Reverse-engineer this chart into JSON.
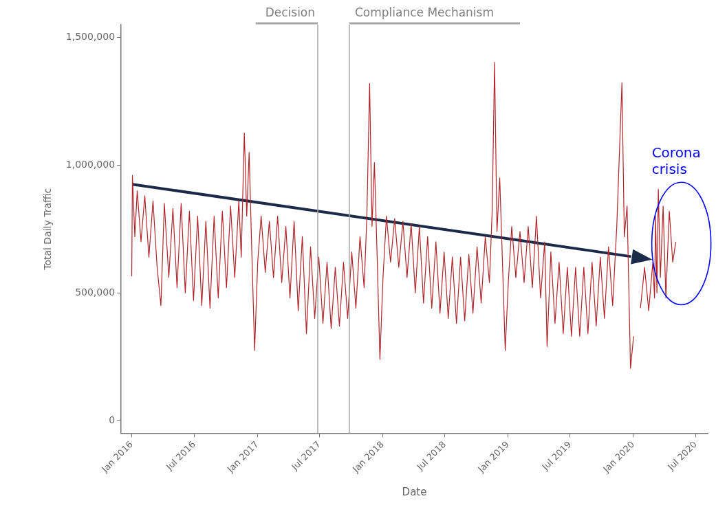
{
  "chart_data": {
    "type": "line",
    "xlabel": "Date",
    "ylabel": "Total Daily Traffic",
    "xlim": [
      "2015-12-01",
      "2020-08-05"
    ],
    "xticks": [
      {
        "value": "2016-01-01",
        "label": "Jan 2016"
      },
      {
        "value": "2016-07-01",
        "label": "Jul 2016"
      },
      {
        "value": "2017-01-01",
        "label": "Jan 2017"
      },
      {
        "value": "2017-07-01",
        "label": "Jul 2017"
      },
      {
        "value": "2018-01-01",
        "label": "Jan 2018"
      },
      {
        "value": "2018-07-01",
        "label": "Jul 2018"
      },
      {
        "value": "2019-01-01",
        "label": "Jan 2019"
      },
      {
        "value": "2019-07-01",
        "label": "Jul 2019"
      },
      {
        "value": "2020-01-01",
        "label": "Jan 2020"
      },
      {
        "value": "2020-07-01",
        "label": "Jul 2020"
      }
    ],
    "ylim": [
      -50000,
      1550000
    ],
    "yticks": [
      0,
      {
        "value": 500000,
        "label": "500,000"
      },
      {
        "value": 1000000,
        "label": "1,000,000"
      },
      {
        "value": 1500000,
        "label": "1,500,000"
      }
    ],
    "grid": false,
    "legend": false,
    "marker": "none",
    "line_style": "solid",
    "series": [
      {
        "color": "#b0252a",
        "x": [
          "2016-01-01",
          "2016-01-03",
          "2016-01-10",
          "2016-01-17",
          "2016-01-28",
          "2016-02-08",
          "2016-02-20",
          "2016-03-03",
          "2016-03-15",
          "2016-03-26",
          "2016-04-05",
          "2016-04-18",
          "2016-04-30",
          "2016-05-12",
          "2016-05-24",
          "2016-06-05",
          "2016-06-17",
          "2016-06-29",
          "2016-07-11",
          "2016-07-23",
          "2016-08-04",
          "2016-08-16",
          "2016-08-28",
          "2016-09-09",
          "2016-09-21",
          "2016-10-03",
          "2016-10-15",
          "2016-10-27",
          "2016-11-08",
          "2016-11-15",
          "2016-11-24",
          "2016-12-01",
          "2016-12-08",
          "2016-12-15",
          "2016-12-24",
          "2017-01-02",
          "2017-01-12",
          "2017-01-24",
          "2017-02-05",
          "2017-02-17",
          "2017-03-01",
          "2017-03-13",
          "2017-03-25",
          "2017-04-06",
          "2017-04-18",
          "2017-04-30",
          "2017-05-12",
          "2017-05-24",
          "2017-06-05",
          "2017-06-17",
          "2017-06-29",
          "2017-07-11",
          "2017-07-23",
          "2017-08-04",
          "2017-08-16",
          "2017-08-28",
          "2017-09-09",
          "2017-09-21",
          "2017-10-03",
          "2017-10-15",
          "2017-10-27",
          "2017-11-08",
          "2017-11-16",
          "2017-11-24",
          "2017-12-01",
          "2017-12-08",
          "2017-12-16",
          "2017-12-24",
          "2018-01-02",
          "2018-01-12",
          "2018-01-24",
          "2018-02-05",
          "2018-02-17",
          "2018-03-01",
          "2018-03-13",
          "2018-03-25",
          "2018-04-06",
          "2018-04-18",
          "2018-04-30",
          "2018-05-12",
          "2018-05-24",
          "2018-06-05",
          "2018-06-17",
          "2018-06-29",
          "2018-07-11",
          "2018-07-23",
          "2018-08-04",
          "2018-08-16",
          "2018-08-28",
          "2018-09-09",
          "2018-09-21",
          "2018-10-03",
          "2018-10-15",
          "2018-10-27",
          "2018-11-08",
          "2018-11-16",
          "2018-11-23",
          "2018-11-30",
          "2018-12-08",
          "2018-12-16",
          "2018-12-24",
          "2019-01-02",
          "2019-01-12",
          "2019-01-24",
          "2019-02-05",
          "2019-02-17",
          "2019-03-01",
          "2019-03-13",
          "2019-03-25",
          "2019-04-06",
          "2019-04-18",
          "2019-04-25",
          "2019-05-06",
          "2019-05-18",
          "2019-05-30",
          "2019-06-11",
          "2019-06-23",
          "2019-07-05",
          "2019-07-17",
          "2019-07-29",
          "2019-08-10",
          "2019-08-22",
          "2019-09-03",
          "2019-09-15",
          "2019-09-27",
          "2019-10-09",
          "2019-10-21",
          "2019-11-02",
          "2019-11-14",
          "2019-11-29",
          "2019-12-06",
          "2019-12-14",
          "2019-12-24",
          "2020-01-02",
          "2020-01-10",
          "2020-01-22",
          "2020-02-03",
          "2020-02-15",
          "2020-02-27",
          "2020-03-03",
          "2020-03-06",
          "2020-03-10",
          "2020-03-14",
          "2020-03-20",
          "2020-03-28",
          "2020-04-05",
          "2020-04-15",
          "2020-04-25",
          "2020-05-04"
        ],
        "values": [
          565000,
          960000,
          720000,
          900000,
          700000,
          880000,
          640000,
          860000,
          600000,
          450000,
          850000,
          560000,
          830000,
          520000,
          850000,
          500000,
          820000,
          470000,
          800000,
          450000,
          780000,
          440000,
          800000,
          480000,
          820000,
          520000,
          840000,
          560000,
          860000,
          640000,
          1126000,
          800000,
          1050000,
          700000,
          274000,
          620000,
          800000,
          580000,
          780000,
          560000,
          800000,
          540000,
          760000,
          480000,
          780000,
          430000,
          720000,
          340000,
          680000,
          400000,
          640000,
          380000,
          620000,
          360000,
          600000,
          370000,
          620000,
          400000,
          660000,
          440000,
          720000,
          520000,
          800000,
          1320000,
          760000,
          1010000,
          640000,
          239000,
          560000,
          800000,
          620000,
          790000,
          600000,
          780000,
          560000,
          770000,
          500000,
          760000,
          460000,
          720000,
          440000,
          700000,
          420000,
          660000,
          400000,
          640000,
          380000,
          640000,
          390000,
          650000,
          420000,
          680000,
          460000,
          720000,
          540000,
          820000,
          1403000,
          740000,
          950000,
          620000,
          274000,
          540000,
          760000,
          560000,
          740000,
          540000,
          760000,
          520000,
          800000,
          480000,
          700000,
          290000,
          660000,
          380000,
          620000,
          340000,
          600000,
          330000,
          600000,
          330000,
          600000,
          340000,
          620000,
          370000,
          640000,
          400000,
          680000,
          450000,
          760000,
          1322000,
          720000,
          840000,
          204000,
          330000,
          null,
          440000,
          600000,
          430000,
          620000,
          480000,
          800000,
          500000,
          906000,
          560000,
          840000,
          480000,
          820000,
          620000,
          700000
        ]
      },
      {
        "type": "line",
        "color": "#1c2a4a",
        "x": [
          "2016-01-03",
          "2019-12-26"
        ],
        "values": [
          925000,
          642000
        ]
      }
    ],
    "ref_lines": [
      {
        "axis": "x",
        "value": "2017-06-26",
        "label": "Decision",
        "color": "#a6a6a6"
      },
      {
        "axis": "x",
        "value": "2017-09-26",
        "label": "Compliance Mechanism",
        "color": "#a6a6a6"
      }
    ],
    "annotations": [
      "Corona crisis"
    ]
  }
}
